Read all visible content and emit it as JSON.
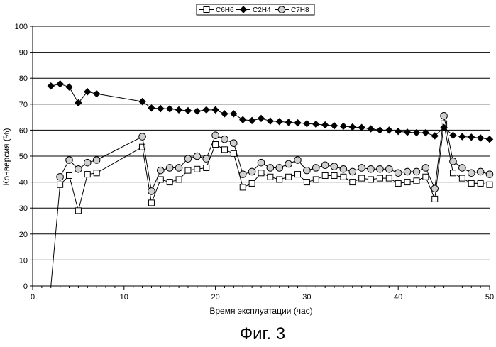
{
  "caption": "Фиг. 3",
  "chart_data": {
    "type": "line",
    "title": "",
    "xlabel": "Время эксплуатации (час)",
    "ylabel": "Конверсия (%)",
    "xlim": [
      0,
      50
    ],
    "ylim": [
      0,
      100
    ],
    "xticks": [
      0,
      10,
      20,
      30,
      40,
      50
    ],
    "yticks": [
      0,
      10,
      20,
      30,
      40,
      50,
      60,
      70,
      80,
      90,
      100
    ],
    "grid": "horizontal",
    "legend_position": "top",
    "series": [
      {
        "name": "C6H6",
        "marker": "square",
        "points": [
          [
            2,
            0
          ],
          [
            3,
            39
          ],
          [
            4,
            42.5
          ],
          [
            5,
            29
          ],
          [
            6,
            43
          ],
          [
            7,
            43.5
          ],
          [
            12,
            53.5
          ],
          [
            13,
            32
          ],
          [
            14,
            41
          ],
          [
            15,
            40
          ],
          [
            16,
            41
          ],
          [
            17,
            44.5
          ],
          [
            18,
            45
          ],
          [
            19,
            45.5
          ],
          [
            20,
            54.5
          ],
          [
            21,
            52.5
          ],
          [
            22,
            51
          ],
          [
            23,
            38
          ],
          [
            24,
            39.5
          ],
          [
            25,
            43.5
          ],
          [
            26,
            42
          ],
          [
            27,
            41
          ],
          [
            28,
            42
          ],
          [
            29,
            43
          ],
          [
            30,
            40
          ],
          [
            31,
            41
          ],
          [
            32,
            42.5
          ],
          [
            33,
            42.5
          ],
          [
            34,
            42
          ],
          [
            35,
            40
          ],
          [
            36,
            41.5
          ],
          [
            37,
            41
          ],
          [
            38,
            41.5
          ],
          [
            39,
            41.5
          ],
          [
            40,
            39.5
          ],
          [
            41,
            40
          ],
          [
            42,
            40.5
          ],
          [
            43,
            42
          ],
          [
            44,
            33.5
          ],
          [
            45,
            62.5
          ],
          [
            46,
            43.5
          ],
          [
            47,
            41.5
          ],
          [
            48,
            39.5
          ],
          [
            49,
            39.5
          ],
          [
            50,
            39
          ]
        ]
      },
      {
        "name": "C2H4",
        "marker": "diamond",
        "points": [
          [
            2,
            77
          ],
          [
            3,
            77.8
          ],
          [
            4,
            76.6
          ],
          [
            5,
            70.5
          ],
          [
            6,
            74.8
          ],
          [
            7,
            74
          ],
          [
            12,
            71
          ],
          [
            13,
            68.5
          ],
          [
            14,
            68.3
          ],
          [
            15,
            68.2
          ],
          [
            16,
            67.8
          ],
          [
            17,
            67.5
          ],
          [
            18,
            67.3
          ],
          [
            19,
            67.8
          ],
          [
            20,
            67.8
          ],
          [
            21,
            66.3
          ],
          [
            22,
            66.3
          ],
          [
            23,
            64
          ],
          [
            24,
            63.7
          ],
          [
            25,
            64.5
          ],
          [
            26,
            63.5
          ],
          [
            27,
            63.3
          ],
          [
            28,
            63
          ],
          [
            29,
            62.8
          ],
          [
            30,
            62.5
          ],
          [
            31,
            62.3
          ],
          [
            32,
            62
          ],
          [
            33,
            61.7
          ],
          [
            34,
            61.5
          ],
          [
            35,
            61.2
          ],
          [
            36,
            61
          ],
          [
            37,
            60.5
          ],
          [
            38,
            60
          ],
          [
            39,
            60
          ],
          [
            40,
            59.5
          ],
          [
            41,
            59.2
          ],
          [
            42,
            59
          ],
          [
            43,
            59
          ],
          [
            44,
            57.8
          ],
          [
            45,
            61
          ],
          [
            46,
            58
          ],
          [
            47,
            57.5
          ],
          [
            48,
            57.3
          ],
          [
            49,
            57
          ],
          [
            50,
            56.5
          ]
        ]
      },
      {
        "name": "C7H8",
        "marker": "circle",
        "points": [
          [
            3,
            42
          ],
          [
            4,
            48.5
          ],
          [
            5,
            45
          ],
          [
            6,
            47.5
          ],
          [
            7,
            48.5
          ],
          [
            12,
            57.5
          ],
          [
            13,
            36.5
          ],
          [
            14,
            44.5
          ],
          [
            15,
            45.5
          ],
          [
            16,
            45.5
          ],
          [
            17,
            49
          ],
          [
            18,
            50
          ],
          [
            19,
            49
          ],
          [
            20,
            58
          ],
          [
            21,
            56.5
          ],
          [
            22,
            55
          ],
          [
            23,
            43
          ],
          [
            24,
            44
          ],
          [
            25,
            47.5
          ],
          [
            26,
            45.5
          ],
          [
            27,
            45.5
          ],
          [
            28,
            47
          ],
          [
            29,
            48.5
          ],
          [
            30,
            44.5
          ],
          [
            31,
            45.5
          ],
          [
            32,
            46.5
          ],
          [
            33,
            46
          ],
          [
            34,
            45
          ],
          [
            35,
            44
          ],
          [
            36,
            45.5
          ],
          [
            37,
            45
          ],
          [
            38,
            45
          ],
          [
            39,
            45
          ],
          [
            40,
            43.5
          ],
          [
            41,
            44
          ],
          [
            42,
            44
          ],
          [
            43,
            45.5
          ],
          [
            44,
            37.5
          ],
          [
            45,
            65.5
          ],
          [
            46,
            48
          ],
          [
            47,
            45.5
          ],
          [
            48,
            43.5
          ],
          [
            49,
            44
          ],
          [
            50,
            43
          ]
        ]
      }
    ]
  }
}
